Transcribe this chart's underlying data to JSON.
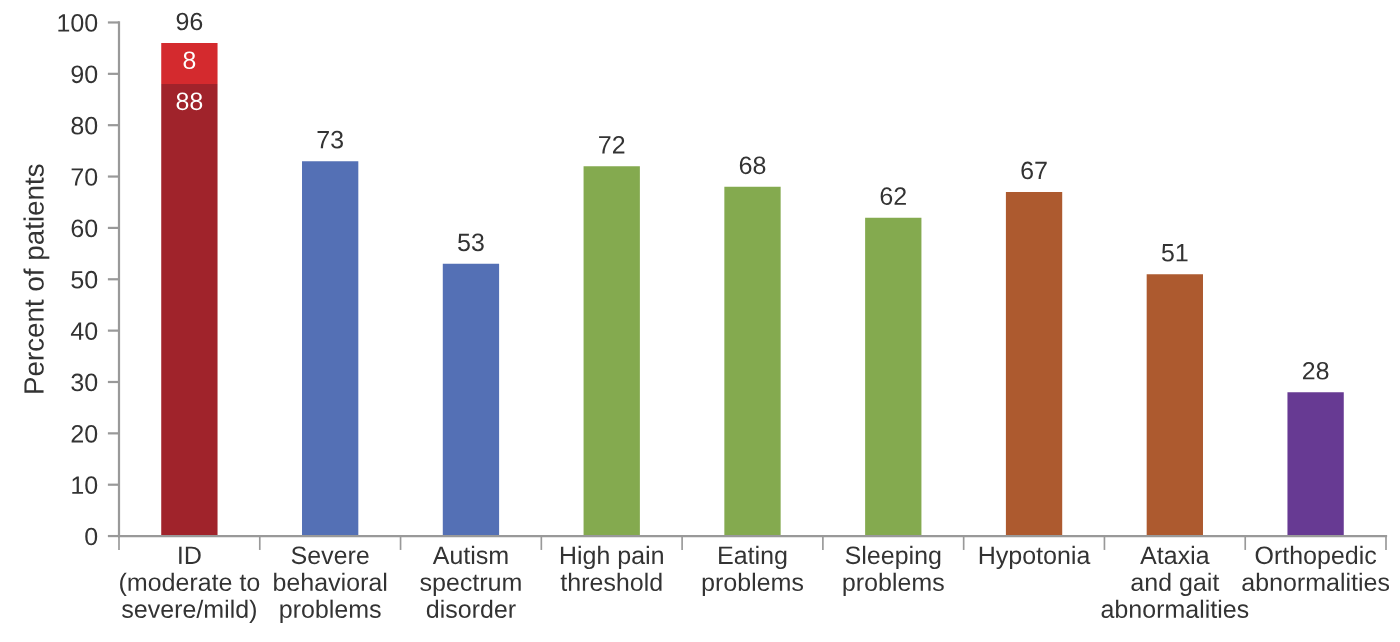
{
  "chart_data": {
    "type": "bar",
    "stacked": true,
    "ylabel": "Percent of patients",
    "categories": [
      "ID\n(moderate to\nsevere/mild)",
      "Severe\nbehavioral\nproblems",
      "Autism\nspectrum\ndisorder",
      "High pain\nthreshold",
      "Eating\nproblems",
      "Sleeping\nproblems",
      "Hypotonia",
      "Ataxia\nand gait\nabnormalities",
      "Orthopedic\nabnormalities"
    ],
    "series": [
      {
        "colors": [
          "#a0232b",
          "#5470b5",
          "#5470b5",
          "#84aa4f",
          "#84aa4f",
          "#84aa4f",
          "#ad5a2f",
          "#ad5a2f",
          "#673a93"
        ],
        "values": [
          88,
          73,
          53,
          72,
          68,
          62,
          67,
          51,
          28
        ],
        "value_labels": [
          "88",
          "73",
          "53",
          "72",
          "68",
          "62",
          "67",
          "51",
          "28"
        ]
      },
      {
        "colors": [
          "#d42a2e",
          null,
          null,
          null,
          null,
          null,
          null,
          null,
          null
        ],
        "values": [
          8,
          null,
          null,
          null,
          null,
          null,
          null,
          null,
          null
        ],
        "value_labels": [
          "8",
          null,
          null,
          null,
          null,
          null,
          null,
          null,
          null
        ]
      }
    ],
    "totals": [
      "96",
      null,
      null,
      null,
      null,
      null,
      null,
      null,
      null
    ],
    "ylim": [
      0,
      100
    ],
    "yticks": [
      0,
      10,
      20,
      30,
      40,
      50,
      60,
      70,
      80,
      90,
      100
    ],
    "grid": false,
    "legend": false
  }
}
